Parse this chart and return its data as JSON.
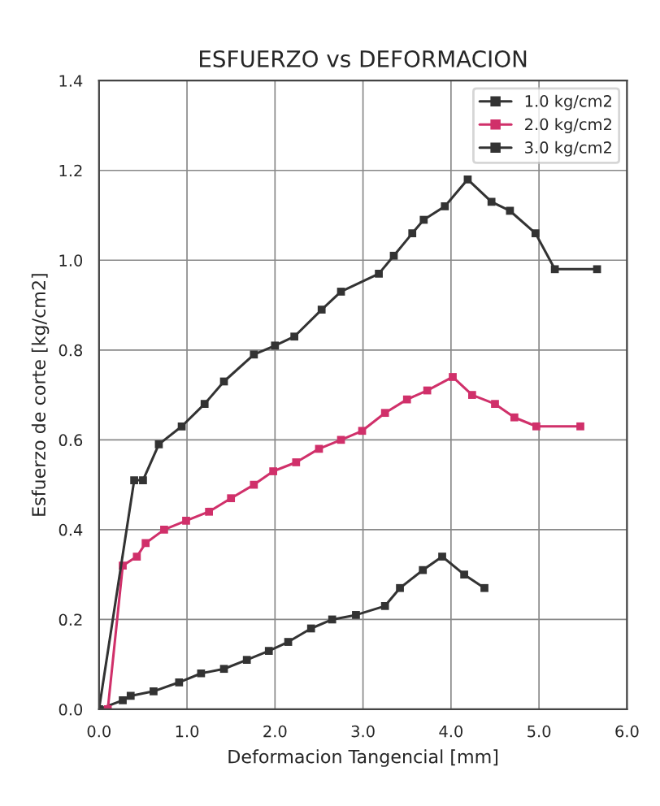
{
  "chart_data": {
    "type": "line",
    "title": "ESFUERZO vs DEFORMACION",
    "xlabel": "Deformacion Tangencial [mm]",
    "ylabel": "Esfuerzo de corte [kg/cm2]",
    "xlim": [
      0,
      6
    ],
    "xticks": [
      {
        "value": 0,
        "label": "0.0"
      },
      {
        "value": 1,
        "label": "1.0"
      },
      {
        "value": 2,
        "label": "2.0"
      },
      {
        "value": 3,
        "label": "3.0"
      },
      {
        "value": 4,
        "label": "4.0"
      },
      {
        "value": 5,
        "label": "5.0"
      },
      {
        "value": 6,
        "label": "6.0"
      }
    ],
    "ylim": [
      0,
      1.4
    ],
    "yticks": [
      {
        "value": 0,
        "label": "0.0"
      },
      {
        "value": 0.2,
        "label": "0.2"
      },
      {
        "value": 0.4,
        "label": "0.4"
      },
      {
        "value": 0.6,
        "label": "0.6"
      },
      {
        "value": 0.8,
        "label": "0.8"
      },
      {
        "value": 1.0,
        "label": "1.0"
      },
      {
        "value": 1.2,
        "label": "1.2"
      },
      {
        "value": 1.4,
        "label": "1.4"
      }
    ],
    "grid": true,
    "legend": "top right",
    "marker": "square",
    "line_style": "solid",
    "series": [
      {
        "name": "1.0 kg/cm2",
        "color": "#333333",
        "x": [
          0,
          0.27,
          0.36,
          0.62,
          0.91,
          1.16,
          1.42,
          1.68,
          1.93,
          2.15,
          2.41,
          2.65,
          2.92,
          3.25,
          3.42,
          3.68,
          3.9,
          4.15,
          4.38
        ],
        "values": [
          0,
          0.02,
          0.03,
          0.04,
          0.06,
          0.08,
          0.09,
          0.11,
          0.13,
          0.15,
          0.18,
          0.2,
          0.21,
          0.23,
          0.27,
          0.31,
          0.34,
          0.3,
          0.27
        ]
      },
      {
        "name": "2.0 kg/cm2",
        "color": "#d0306a",
        "x": [
          0.1,
          0.27,
          0.43,
          0.53,
          0.74,
          0.99,
          1.25,
          1.5,
          1.76,
          1.98,
          2.24,
          2.5,
          2.75,
          2.99,
          3.25,
          3.5,
          3.73,
          4.02,
          4.24,
          4.5,
          4.72,
          4.97,
          5.47
        ],
        "values": [
          0,
          0.32,
          0.34,
          0.37,
          0.4,
          0.42,
          0.44,
          0.47,
          0.5,
          0.53,
          0.55,
          0.58,
          0.6,
          0.62,
          0.66,
          0.69,
          0.71,
          0.74,
          0.7,
          0.68,
          0.65,
          0.63,
          0.63
        ]
      },
      {
        "name": "3.0 kg/cm2",
        "color": "#333333",
        "x": [
          0,
          0.4,
          0.5,
          0.68,
          0.94,
          1.2,
          1.42,
          1.76,
          2.0,
          2.22,
          2.53,
          2.75,
          3.18,
          3.35,
          3.56,
          3.69,
          3.93,
          4.19,
          4.46,
          4.67,
          4.96,
          5.18,
          5.66
        ],
        "values": [
          0,
          0.51,
          0.51,
          0.59,
          0.63,
          0.68,
          0.73,
          0.79,
          0.81,
          0.83,
          0.89,
          0.93,
          0.97,
          1.01,
          1.06,
          1.09,
          1.12,
          1.18,
          1.13,
          1.11,
          1.06,
          0.98,
          0.98
        ]
      }
    ]
  }
}
